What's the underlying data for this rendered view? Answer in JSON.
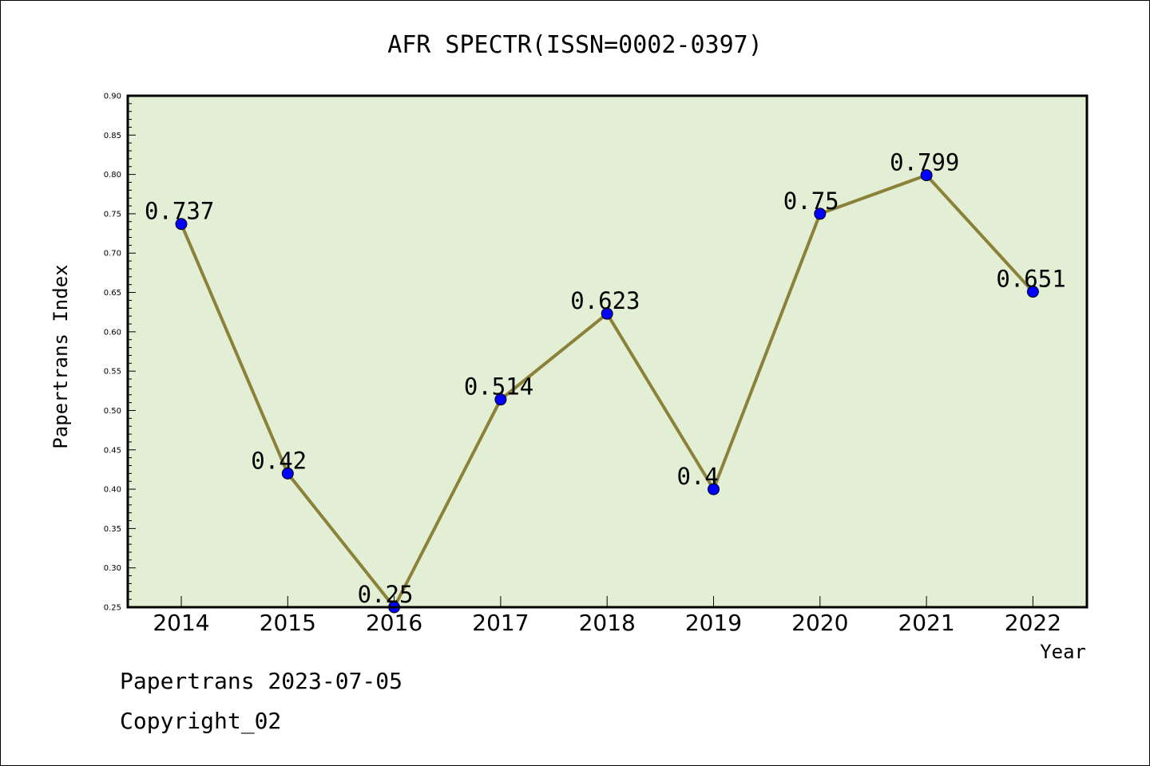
{
  "chart_data": {
    "type": "line",
    "title": "AFR SPECTR(ISSN=0002-0397)",
    "xlabel": "Year",
    "ylabel": "Papertrans Index",
    "categories": [
      "2014",
      "2015",
      "2016",
      "2017",
      "2018",
      "2019",
      "2020",
      "2021",
      "2022"
    ],
    "values": [
      0.737,
      0.42,
      0.25,
      0.514,
      0.623,
      0.4,
      0.75,
      0.799,
      0.651
    ],
    "data_labels": [
      "0.737",
      "0.42",
      "0.25",
      "0.514",
      "0.623",
      "0.4",
      "0.75",
      "0.799",
      "0.651"
    ],
    "ylim": [
      0.25,
      0.9
    ],
    "yticks": [
      "0.25",
      "0.30",
      "0.35",
      "0.40",
      "0.45",
      "0.50",
      "0.55",
      "0.60",
      "0.65",
      "0.70",
      "0.75",
      "0.80",
      "0.85",
      "0.90"
    ],
    "grid": false,
    "colors": {
      "plot_bg": "#e2efd5",
      "line": "#8b8139",
      "marker": "#0000ff"
    }
  },
  "footer": {
    "line1": "Papertrans 2023-07-05",
    "line2": "Copyright_02"
  }
}
